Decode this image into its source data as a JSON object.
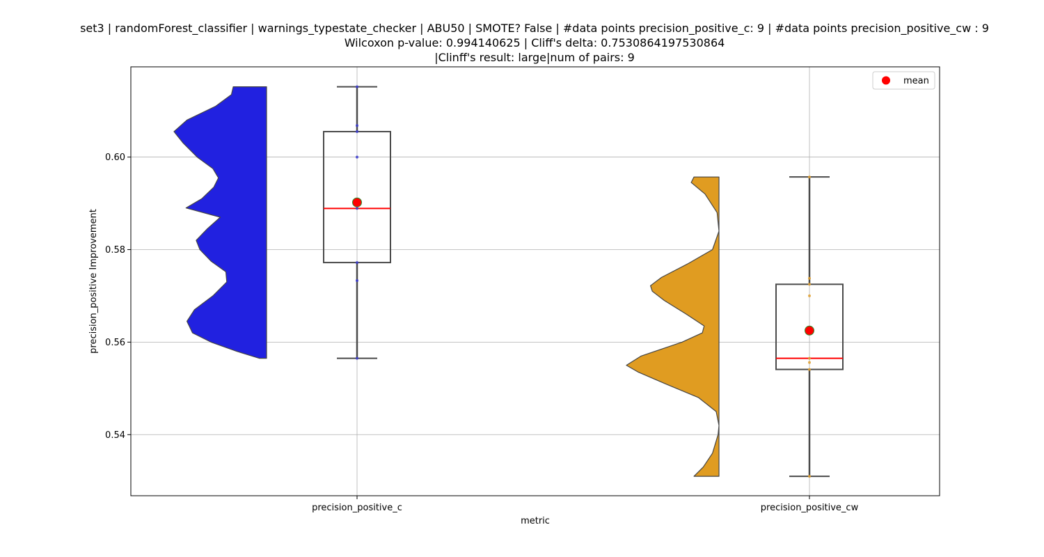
{
  "chart_data": {
    "type": "violin-box",
    "title_lines": [
      "set3 | randomForest_classifier | warnings_typestate_checker | ABU50 | SMOTE? False | #data points precision_positive_c: 9 | #data points precision_positive_cw : 9",
      "Wilcoxon p-value: 0.994140625 | Cliff's delta: 0.7530864197530864",
      "|Clinff's result: large|num of pairs: 9"
    ],
    "xlabel": "metric",
    "ylabel": "precision_positive Improvement",
    "ylim": [
      0.5268,
      0.6195
    ],
    "yticks": [
      0.54,
      0.56,
      0.58,
      0.6
    ],
    "ytick_labels": [
      "0.54",
      "0.56",
      "0.58",
      "0.60"
    ],
    "grid": true,
    "legend": {
      "placement": "top-right",
      "entries": [
        {
          "label": "mean",
          "color": "#ff0000"
        }
      ]
    },
    "categories": [
      "precision_positive_c",
      "precision_positive_cw"
    ],
    "series": [
      {
        "category": "precision_positive_c",
        "violin_color": "#2121e0",
        "point_color": "#3a3ad0",
        "points": [
          0.5565,
          0.5733,
          0.5772,
          0.5889,
          0.59,
          0.6,
          0.6055,
          0.6068,
          0.6152
        ],
        "box": {
          "whisker_low": 0.5565,
          "q1": 0.5772,
          "median": 0.5889,
          "q3": 0.6055,
          "whisker_high": 0.6152
        },
        "mean": 0.5902,
        "violin_range": [
          0.5565,
          0.6152
        ],
        "violin_profile": [
          [
            0.5565,
            0.08
          ],
          [
            0.558,
            0.32
          ],
          [
            0.56,
            0.6
          ],
          [
            0.562,
            0.8
          ],
          [
            0.5645,
            0.86
          ],
          [
            0.567,
            0.78
          ],
          [
            0.57,
            0.58
          ],
          [
            0.573,
            0.43
          ],
          [
            0.5752,
            0.44
          ],
          [
            0.5775,
            0.6
          ],
          [
            0.58,
            0.72
          ],
          [
            0.582,
            0.76
          ],
          [
            0.5845,
            0.64
          ],
          [
            0.587,
            0.5
          ],
          [
            0.589,
            0.87
          ],
          [
            0.591,
            0.7
          ],
          [
            0.5935,
            0.57
          ],
          [
            0.5955,
            0.52
          ],
          [
            0.5975,
            0.58
          ],
          [
            0.6,
            0.75
          ],
          [
            0.603,
            0.9
          ],
          [
            0.6055,
            1.0
          ],
          [
            0.608,
            0.86
          ],
          [
            0.611,
            0.55
          ],
          [
            0.6135,
            0.38
          ],
          [
            0.6152,
            0.36
          ]
        ]
      },
      {
        "category": "precision_positive_cw",
        "violin_color": "#e09c21",
        "point_color": "#e0a030",
        "points": [
          0.531,
          0.5541,
          0.5556,
          0.5565,
          0.5625,
          0.57,
          0.5725,
          0.5738,
          0.5957
        ],
        "box": {
          "whisker_low": 0.531,
          "q1": 0.5541,
          "median": 0.5565,
          "q3": 0.5725,
          "whisker_high": 0.5957
        },
        "mean": 0.5625,
        "violin_range": [
          0.531,
          0.5957
        ],
        "violin_profile": [
          [
            0.531,
            0.27
          ],
          [
            0.533,
            0.17
          ],
          [
            0.536,
            0.07
          ],
          [
            0.54,
            0.01
          ],
          [
            0.542,
            0.0
          ],
          [
            0.545,
            0.03
          ],
          [
            0.548,
            0.22
          ],
          [
            0.551,
            0.58
          ],
          [
            0.5535,
            0.87
          ],
          [
            0.555,
            1.0
          ],
          [
            0.557,
            0.84
          ],
          [
            0.56,
            0.4
          ],
          [
            0.562,
            0.18
          ],
          [
            0.5635,
            0.16
          ],
          [
            0.566,
            0.35
          ],
          [
            0.569,
            0.59
          ],
          [
            0.571,
            0.72
          ],
          [
            0.5722,
            0.74
          ],
          [
            0.574,
            0.62
          ],
          [
            0.577,
            0.33
          ],
          [
            0.58,
            0.07
          ],
          [
            0.584,
            0.0
          ],
          [
            0.588,
            0.02
          ],
          [
            0.592,
            0.15
          ],
          [
            0.5945,
            0.3
          ],
          [
            0.5957,
            0.27
          ]
        ]
      }
    ]
  }
}
